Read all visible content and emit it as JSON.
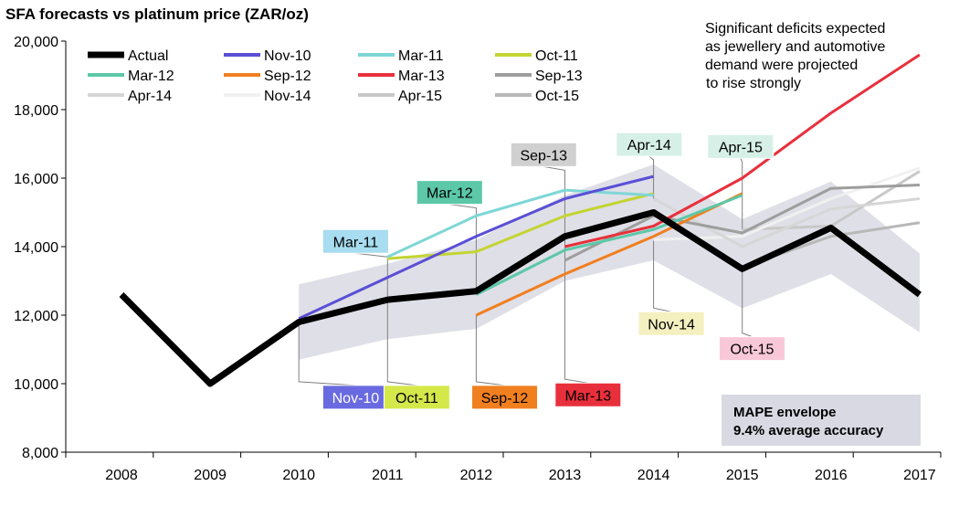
{
  "chart_data": {
    "type": "line",
    "title": "SFA forecasts vs platinum price (ZAR/oz)",
    "x": [
      "2008",
      "2009",
      "2010",
      "2011",
      "2012",
      "2013",
      "2014",
      "2015",
      "2016",
      "2017"
    ],
    "y_ticks": [
      "8,000",
      "10,000",
      "12,000",
      "14,000",
      "16,000",
      "18,000",
      "20,000"
    ],
    "ylim": [
      8000,
      20000
    ],
    "grid": false,
    "legend_position": "top-left",
    "envelope": {
      "label_line1": "MAPE envelope",
      "label_line2": "9.4% average accuracy",
      "color": "#d9d9e3",
      "upper": [
        [
          2010,
          12900
        ],
        [
          2011,
          13500
        ],
        [
          2012,
          14200
        ],
        [
          2013,
          15500
        ],
        [
          2014,
          16400
        ],
        [
          2015,
          14800
        ],
        [
          2016,
          15900
        ],
        [
          2017,
          13800
        ]
      ],
      "lower": [
        [
          2010,
          10700
        ],
        [
          2011,
          11300
        ],
        [
          2012,
          11600
        ],
        [
          2013,
          13000
        ],
        [
          2014,
          13600
        ],
        [
          2015,
          12200
        ],
        [
          2016,
          13200
        ],
        [
          2017,
          11500
        ]
      ]
    },
    "annotation": {
      "lines": [
        "Significant deficits expected",
        "as jewellery and automotive",
        "demand were projected",
        "to rise strongly"
      ]
    },
    "series": [
      {
        "name": "Actual",
        "color": "#000000",
        "width": 7,
        "points": [
          [
            2008,
            12600
          ],
          [
            2009,
            10000
          ],
          [
            2010,
            11800
          ],
          [
            2011,
            12450
          ],
          [
            2012,
            12700
          ],
          [
            2013,
            14300
          ],
          [
            2014,
            15000
          ],
          [
            2015,
            13350
          ],
          [
            2016,
            14550
          ],
          [
            2017,
            12600
          ]
        ]
      },
      {
        "name": "Nov-10",
        "color": "#5a4fd6",
        "width": 3,
        "points": [
          [
            2010,
            11900
          ],
          [
            2011,
            13100
          ],
          [
            2012,
            14300
          ],
          [
            2013,
            15400
          ],
          [
            2014,
            16050
          ]
        ]
      },
      {
        "name": "Mar-11",
        "color": "#7fd6d6",
        "width": 3,
        "points": [
          [
            2011,
            13700
          ],
          [
            2012,
            14900
          ],
          [
            2013,
            15650
          ],
          [
            2014,
            15500
          ]
        ]
      },
      {
        "name": "Oct-11",
        "color": "#c4d432",
        "width": 3,
        "points": [
          [
            2011,
            13650
          ],
          [
            2012,
            13850
          ],
          [
            2013,
            14900
          ],
          [
            2014,
            15550
          ]
        ]
      },
      {
        "name": "Mar-12",
        "color": "#5cc8a8",
        "width": 3,
        "points": [
          [
            2012,
            12600
          ],
          [
            2013,
            13900
          ],
          [
            2014,
            14500
          ],
          [
            2015,
            15500
          ]
        ]
      },
      {
        "name": "Sep-12",
        "color": "#f07f1f",
        "width": 3,
        "points": [
          [
            2012,
            12000
          ],
          [
            2013,
            13200
          ],
          [
            2014,
            14300
          ],
          [
            2015,
            15550
          ]
        ]
      },
      {
        "name": "Mar-13",
        "color": "#e8303c",
        "width": 3,
        "points": [
          [
            2013,
            14000
          ],
          [
            2014,
            14600
          ],
          [
            2015,
            16000
          ],
          [
            2016,
            17900
          ],
          [
            2017,
            19600
          ]
        ]
      },
      {
        "name": "Sep-13",
        "color": "#9e9e9e",
        "width": 3,
        "points": [
          [
            2013,
            13600
          ],
          [
            2014,
            14900
          ],
          [
            2015,
            14400
          ],
          [
            2016,
            15700
          ],
          [
            2017,
            15800
          ]
        ]
      },
      {
        "name": "Apr-14",
        "color": "#d6d6d6",
        "width": 3,
        "points": [
          [
            2014,
            15400
          ],
          [
            2015,
            14000
          ],
          [
            2016,
            15100
          ],
          [
            2017,
            15400
          ]
        ]
      },
      {
        "name": "Nov-14",
        "color": "#f0f0f0",
        "width": 3,
        "points": [
          [
            2014,
            14200
          ],
          [
            2015,
            14300
          ],
          [
            2016,
            15400
          ],
          [
            2017,
            16300
          ]
        ]
      },
      {
        "name": "Apr-15",
        "color": "#c8c8c8",
        "width": 3,
        "points": [
          [
            2015,
            14500
          ],
          [
            2016,
            14600
          ],
          [
            2017,
            16200
          ]
        ]
      },
      {
        "name": "Oct-15",
        "color": "#b8b8b8",
        "width": 3,
        "points": [
          [
            2015,
            13400
          ],
          [
            2016,
            14300
          ],
          [
            2017,
            14700
          ]
        ]
      }
    ],
    "callouts": [
      {
        "label": "Nov-10",
        "fill": "#6a6ae0",
        "text_color": "#ffffff",
        "anchor": [
          2010,
          11800
        ],
        "box_value": [
          2010.27,
          9950
        ]
      },
      {
        "label": "Mar-11",
        "fill": "#a8dcf0",
        "text_color": "#000000",
        "anchor": [
          2011,
          13700
        ],
        "box_value": [
          2010.27,
          14500
        ]
      },
      {
        "label": "Oct-11",
        "fill": "#d4e84a",
        "text_color": "#000000",
        "anchor": [
          2011,
          13650
        ],
        "box_value": [
          2010.96,
          9950
        ]
      },
      {
        "label": "Mar-12",
        "fill": "#5cc8a8",
        "text_color": "#000000",
        "anchor": [
          2012,
          12600
        ],
        "box_value": [
          2011.33,
          15930
        ]
      },
      {
        "label": "Sep-12",
        "fill": "#f07f1f",
        "text_color": "#000000",
        "anchor": [
          2012,
          12000
        ],
        "box_value": [
          2011.95,
          9950
        ]
      },
      {
        "label": "Mar-13",
        "fill": "#e8303c",
        "text_color": "#000000",
        "anchor": [
          2013,
          14000
        ],
        "box_value": [
          2012.89,
          10020
        ]
      },
      {
        "label": "Sep-13",
        "fill": "#d0d0d0",
        "text_color": "#000000",
        "anchor": [
          2013,
          13600
        ],
        "box_value": [
          2012.39,
          17030
        ]
      },
      {
        "label": "Apr-14",
        "fill": "#d6f0e8",
        "text_color": "#000000",
        "anchor": [
          2014,
          15400
        ],
        "box_value": [
          2013.58,
          17330
        ]
      },
      {
        "label": "Nov-14",
        "fill": "#f4f0c0",
        "text_color": "#000000",
        "anchor": [
          2014,
          14200
        ],
        "box_value": [
          2013.83,
          12100
        ]
      },
      {
        "label": "Apr-15",
        "fill": "#d6f0e8",
        "text_color": "#000000",
        "anchor": [
          2015,
          14500
        ],
        "box_value": [
          2014.61,
          17270
        ]
      },
      {
        "label": "Oct-15",
        "fill": "#f8c8d8",
        "text_color": "#000000",
        "anchor": [
          2015,
          13400
        ],
        "box_value": [
          2014.74,
          11370
        ]
      }
    ]
  }
}
